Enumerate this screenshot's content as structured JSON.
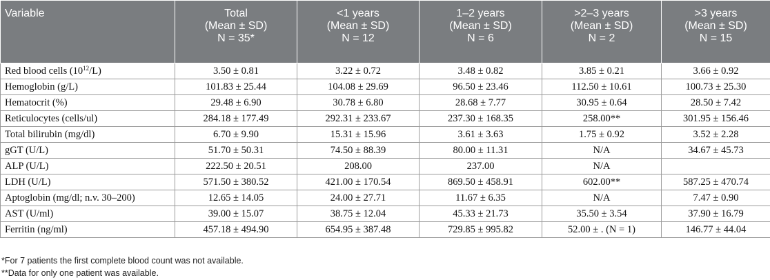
{
  "headers": [
    {
      "lines": [
        "Variable"
      ]
    },
    {
      "lines": [
        "Total",
        "(Mean ± SD)",
        "N = 35*"
      ]
    },
    {
      "lines": [
        "<1 years",
        "(Mean ± SD)",
        "N = 12"
      ]
    },
    {
      "lines": [
        "1–2 years",
        "(Mean ± SD)",
        "N = 6"
      ]
    },
    {
      "lines": [
        ">2–3 years",
        "(Mean ± SD)",
        "N = 2"
      ]
    },
    {
      "lines": [
        ">3 years",
        "(Mean ± SD)",
        "N = 15"
      ]
    }
  ],
  "rows": [
    {
      "variable": {
        "pre": "Red blood cells (10",
        "sup": "12",
        "post": "/L)"
      },
      "values": [
        "3.50 ± 0.81",
        "3.22 ± 0.72",
        "3.48 ± 0.82",
        "3.85 ± 0.21",
        "3.66 ± 0.92"
      ]
    },
    {
      "variable": {
        "pre": "Hemoglobin (g/L)"
      },
      "values": [
        "101.83 ± 25.44",
        "104.08 ± 29.69",
        "96.50 ± 23.46",
        "112.50 ± 10.61",
        "100.73 ± 25.30"
      ]
    },
    {
      "variable": {
        "pre": "Hematocrit (%)"
      },
      "values": [
        "29.48 ± 6.90",
        "30.78 ± 6.80",
        "28.68 ± 7.77",
        "30.95 ± 0.64",
        "28.50 ± 7.42"
      ]
    },
    {
      "variable": {
        "pre": "Reticulocytes (cells/ul)"
      },
      "values": [
        "284.18 ± 177.49",
        "292.31 ± 233.67",
        "237.30 ± 168.35",
        "258.00**",
        "301.95 ± 156.46"
      ]
    },
    {
      "variable": {
        "pre": "Total bilirubin (mg/dl)"
      },
      "values": [
        "6.70 ± 9.90",
        "15.31 ± 15.96",
        "3.61 ± 3.63",
        "1.75 ± 0.92",
        "3.52 ± 2.28"
      ]
    },
    {
      "variable": {
        "pre": "gGT (U/L)"
      },
      "values": [
        "51.70 ± 50.31",
        "74.50 ± 88.39",
        "80.00 ± 11.31",
        "N/A",
        "34.67 ± 45.73"
      ]
    },
    {
      "variable": {
        "pre": "ALP (U/L)"
      },
      "values": [
        "222.50 ± 20.51",
        "208.00",
        "237.00",
        "N/A",
        ""
      ]
    },
    {
      "variable": {
        "pre": "LDH (U/L)"
      },
      "values": [
        "571.50 ± 380.52",
        "421.00 ± 170.54",
        "869.50 ± 458.91",
        "602.00**",
        "587.25 ± 470.74"
      ]
    },
    {
      "variable": {
        "pre": "Aptoglobin (mg/dl; n.v. 30–200)"
      },
      "values": [
        "12.65 ± 14.05",
        "24.00 ± 27.71",
        "11.67 ± 6.35",
        "N/A",
        "7.47 ± 0.90"
      ]
    },
    {
      "variable": {
        "pre": "AST (U/ml)"
      },
      "values": [
        "39.00 ± 15.07",
        "38.75 ± 12.04",
        "45.33 ± 21.73",
        "35.50 ± 3.54",
        "37.90 ± 16.79"
      ]
    },
    {
      "variable": {
        "pre": "Ferritin (ng/ml)"
      },
      "values": [
        "457.18 ± 494.90",
        "654.95 ± 387.48",
        "729.85 ± 995.82",
        "52.00 ± . (N = 1)",
        "146.77 ± 44.04"
      ]
    }
  ],
  "footnotes": [
    "*For 7 patients the first complete blood count was not available.",
    "**Data for only one patient was available."
  ]
}
